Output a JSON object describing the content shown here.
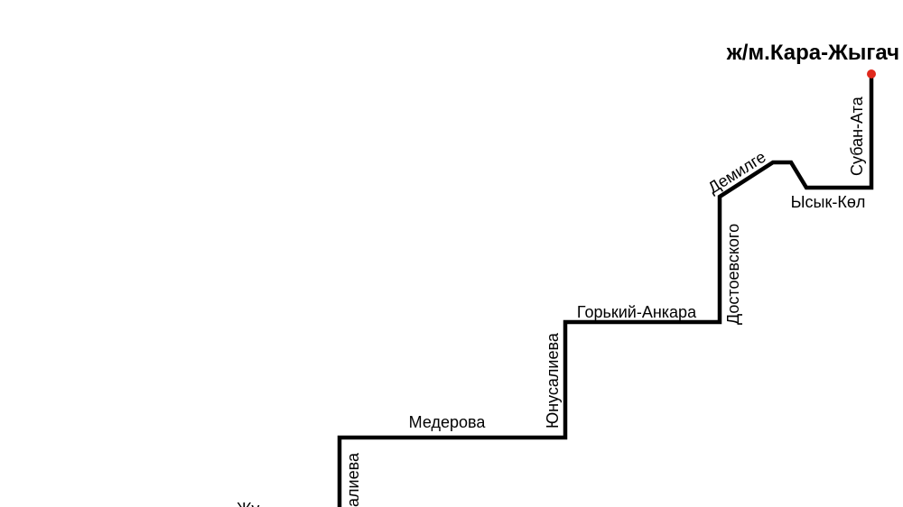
{
  "map": {
    "terminus": {
      "label": "ж/м.Кара-Жыгач",
      "marker_color": "#e0281c"
    },
    "route_color": "#000000",
    "streets": {
      "suban_ata": "Субан-Ата",
      "ysyk_kol": "Ысык-Көл",
      "demilge": "Демилге",
      "dostoevskogo": "Достоевского",
      "gorkiy_ankara": "Горький-Анкара",
      "yunusalieva": "Юнусалиева",
      "mederova": "Медерова",
      "lower_vertical_partial": "алиева",
      "bottom_left_partial": "Жу"
    }
  }
}
